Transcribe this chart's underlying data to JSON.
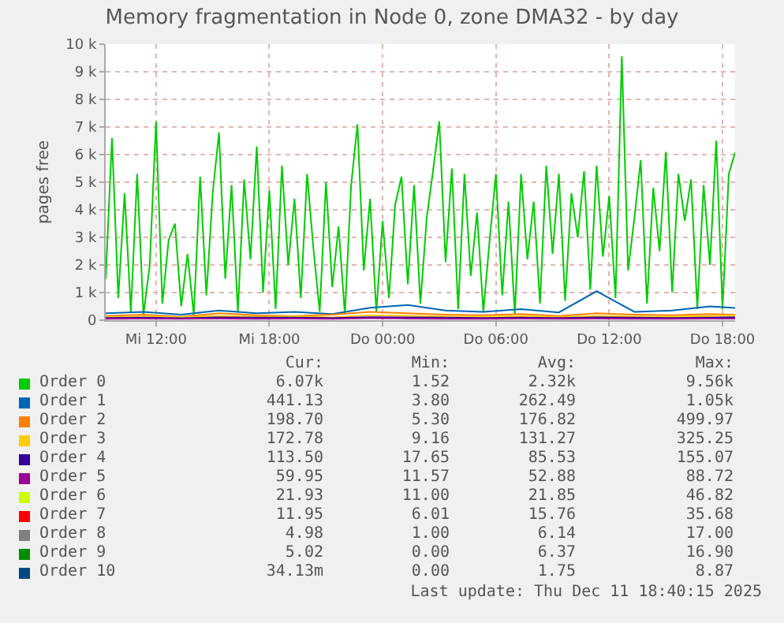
{
  "chart_data": {
    "type": "line",
    "title": "Memory fragmentation in Node 0, zone DMA32 - by day",
    "ylabel": "pages free",
    "x": [
      "2025-12-10T09:20",
      "2025-12-10T09:40",
      "2025-12-10T10:00",
      "2025-12-10T10:20",
      "2025-12-10T10:40",
      "2025-12-10T11:00",
      "2025-12-10T11:20",
      "2025-12-10T11:40",
      "2025-12-10T12:00",
      "2025-12-10T12:20",
      "2025-12-10T12:40",
      "2025-12-10T13:00",
      "2025-12-10T13:20",
      "2025-12-10T13:40",
      "2025-12-10T14:00",
      "2025-12-10T14:20",
      "2025-12-10T14:40",
      "2025-12-10T15:00",
      "2025-12-10T15:20",
      "2025-12-10T15:40",
      "2025-12-10T16:00",
      "2025-12-10T16:20",
      "2025-12-10T16:40",
      "2025-12-10T17:00",
      "2025-12-10T17:20",
      "2025-12-10T17:40",
      "2025-12-10T18:00",
      "2025-12-10T18:20",
      "2025-12-10T18:40",
      "2025-12-10T19:00",
      "2025-12-10T19:20",
      "2025-12-10T19:40",
      "2025-12-10T20:00",
      "2025-12-10T20:20",
      "2025-12-10T20:40",
      "2025-12-10T21:00",
      "2025-12-10T21:20",
      "2025-12-10T21:40",
      "2025-12-10T22:00",
      "2025-12-10T22:20",
      "2025-12-10T22:40",
      "2025-12-10T23:00",
      "2025-12-10T23:20",
      "2025-12-10T23:40",
      "2025-12-11T00:00",
      "2025-12-11T00:20",
      "2025-12-11T00:40",
      "2025-12-11T01:00",
      "2025-12-11T01:20",
      "2025-12-11T01:40",
      "2025-12-11T02:00",
      "2025-12-11T02:20",
      "2025-12-11T02:40",
      "2025-12-11T03:00",
      "2025-12-11T03:20",
      "2025-12-11T03:40",
      "2025-12-11T04:00",
      "2025-12-11T04:20",
      "2025-12-11T04:40",
      "2025-12-11T05:00",
      "2025-12-11T05:20",
      "2025-12-11T05:40",
      "2025-12-11T06:00",
      "2025-12-11T06:20",
      "2025-12-11T06:40",
      "2025-12-11T07:00",
      "2025-12-11T07:20",
      "2025-12-11T07:40",
      "2025-12-11T08:00",
      "2025-12-11T08:20",
      "2025-12-11T08:40",
      "2025-12-11T09:00",
      "2025-12-11T09:20",
      "2025-12-11T09:40",
      "2025-12-11T10:00",
      "2025-12-11T10:20",
      "2025-12-11T10:40",
      "2025-12-11T11:00",
      "2025-12-11T11:20",
      "2025-12-11T11:40",
      "2025-12-11T12:00",
      "2025-12-11T12:20",
      "2025-12-11T12:40",
      "2025-12-11T13:00",
      "2025-12-11T13:20",
      "2025-12-11T13:40",
      "2025-12-11T14:00",
      "2025-12-11T14:20",
      "2025-12-11T14:40",
      "2025-12-11T15:00",
      "2025-12-11T15:20",
      "2025-12-11T15:40",
      "2025-12-11T16:00",
      "2025-12-11T16:20",
      "2025-12-11T16:40",
      "2025-12-11T17:00",
      "2025-12-11T17:20",
      "2025-12-11T17:40",
      "2025-12-11T18:00",
      "2025-12-11T18:20",
      "2025-12-11T18:40"
    ],
    "series": [
      {
        "name": "Order 0",
        "color": "#00cc00",
        "values": [
          1500,
          6600,
          800,
          4600,
          300,
          5300,
          200,
          2000,
          7200,
          600,
          2900,
          3500,
          500,
          2400,
          200,
          5200,
          900,
          4600,
          6800,
          1500,
          4900,
          300,
          5100,
          2200,
          6300,
          1000,
          4700,
          400,
          5600,
          2000,
          4400,
          800,
          5300,
          2600,
          300,
          5000,
          1200,
          3400,
          200,
          4900,
          7100,
          1800,
          4400,
          300,
          3600,
          800,
          4200,
          5200,
          1300,
          4900,
          600,
          3700,
          5400,
          7200,
          2100,
          5500,
          400,
          5300,
          1600,
          3900,
          300,
          2900,
          5300,
          900,
          4300,
          200,
          5300,
          2200,
          4300,
          600,
          5600,
          2400,
          5300,
          700,
          4600,
          3000,
          5400,
          1100,
          5600,
          2300,
          4500,
          800,
          9560,
          1800,
          3700,
          5800,
          600,
          4800,
          2500,
          6100,
          1000,
          5300,
          3600,
          5100,
          400,
          4900,
          2000,
          6500,
          400,
          5300,
          6070
        ]
      },
      {
        "name": "Order 1",
        "color": "#0066b3",
        "x": [
          "2025-12-10T09:20",
          "2025-12-10T11:20",
          "2025-12-10T13:20",
          "2025-12-10T15:20",
          "2025-12-10T17:20",
          "2025-12-10T19:20",
          "2025-12-10T21:20",
          "2025-12-10T23:20",
          "2025-12-11T01:20",
          "2025-12-11T03:20",
          "2025-12-11T05:20",
          "2025-12-11T07:20",
          "2025-12-11T09:20",
          "2025-12-11T11:20",
          "2025-12-11T13:20",
          "2025-12-11T15:20",
          "2025-12-11T17:20",
          "2025-12-11T18:40"
        ],
        "values": [
          250,
          300,
          200,
          350,
          250,
          300,
          220,
          450,
          550,
          350,
          300,
          400,
          280,
          1050,
          300,
          350,
          500,
          440
        ]
      },
      {
        "name": "Order 2",
        "color": "#ff8000",
        "x": [
          "2025-12-10T09:20",
          "2025-12-10T11:20",
          "2025-12-10T13:20",
          "2025-12-10T15:20",
          "2025-12-10T17:20",
          "2025-12-10T19:20",
          "2025-12-10T21:20",
          "2025-12-10T23:20",
          "2025-12-11T01:20",
          "2025-12-11T03:20",
          "2025-12-11T05:20",
          "2025-12-11T07:20",
          "2025-12-11T09:20",
          "2025-12-11T11:20",
          "2025-12-11T13:20",
          "2025-12-11T15:20",
          "2025-12-11T17:20",
          "2025-12-11T18:40"
        ],
        "values": [
          150,
          200,
          120,
          250,
          180,
          150,
          200,
          300,
          250,
          200,
          180,
          220,
          150,
          250,
          200,
          180,
          220,
          200
        ]
      },
      {
        "name": "Order 3",
        "color": "#ffcc00",
        "x": [
          "2025-12-10T09:20",
          "2025-12-10T11:20",
          "2025-12-10T13:20",
          "2025-12-10T15:20",
          "2025-12-10T17:20",
          "2025-12-10T19:20",
          "2025-12-10T21:20",
          "2025-12-10T23:20",
          "2025-12-11T01:20",
          "2025-12-11T03:20",
          "2025-12-11T05:20",
          "2025-12-11T07:20",
          "2025-12-11T09:20",
          "2025-12-11T11:20",
          "2025-12-11T13:20",
          "2025-12-11T15:20",
          "2025-12-11T17:20",
          "2025-12-11T18:40"
        ],
        "values": [
          100,
          130,
          110,
          150,
          120,
          140,
          100,
          180,
          160,
          130,
          120,
          140,
          110,
          150,
          130,
          120,
          150,
          170
        ]
      },
      {
        "name": "Order 4",
        "color": "#330099",
        "x": [
          "2025-12-10T09:20",
          "2025-12-10T11:20",
          "2025-12-10T13:20",
          "2025-12-10T15:20",
          "2025-12-10T17:20",
          "2025-12-10T19:20",
          "2025-12-10T21:20",
          "2025-12-10T23:20",
          "2025-12-11T01:20",
          "2025-12-11T03:20",
          "2025-12-11T05:20",
          "2025-12-11T07:20",
          "2025-12-11T09:20",
          "2025-12-11T11:20",
          "2025-12-11T13:20",
          "2025-12-11T15:20",
          "2025-12-11T17:20",
          "2025-12-11T18:40"
        ],
        "values": [
          80,
          90,
          70,
          100,
          90,
          90,
          80,
          110,
          100,
          90,
          80,
          90,
          80,
          100,
          90,
          80,
          90,
          110
        ]
      },
      {
        "name": "Order 5",
        "color": "#990099",
        "x": [
          "2025-12-10T09:20",
          "2025-12-10T11:20",
          "2025-12-10T13:20",
          "2025-12-10T15:20",
          "2025-12-10T17:20",
          "2025-12-10T19:20",
          "2025-12-10T21:20",
          "2025-12-10T23:20",
          "2025-12-11T01:20",
          "2025-12-11T03:20",
          "2025-12-11T05:20",
          "2025-12-11T07:20",
          "2025-12-11T09:20",
          "2025-12-11T11:20",
          "2025-12-11T13:20",
          "2025-12-11T15:20",
          "2025-12-11T17:20",
          "2025-12-11T18:40"
        ],
        "values": [
          50,
          60,
          50,
          60,
          50,
          60,
          50,
          70,
          60,
          50,
          50,
          60,
          50,
          60,
          50,
          50,
          60,
          60
        ]
      },
      {
        "name": "Order 6",
        "color": "#ccff00",
        "values": [
          null,
          null,
          null,
          null,
          null,
          null,
          null,
          null,
          null,
          null,
          null,
          null,
          null,
          null,
          null,
          null,
          null,
          null,
          null,
          null,
          null,
          null,
          null,
          null,
          null,
          null,
          null,
          null,
          null,
          null,
          null,
          null,
          null,
          null,
          null,
          null,
          null,
          null,
          null,
          null,
          null,
          null,
          null,
          null,
          null,
          null,
          null,
          null,
          null,
          null,
          null,
          null,
          null,
          null,
          null,
          null,
          null,
          null,
          null,
          null,
          null,
          null,
          null,
          null,
          null,
          null,
          null,
          null,
          null,
          null,
          null,
          null,
          null,
          null,
          null,
          null,
          null,
          null,
          null,
          null,
          null,
          null,
          null,
          null,
          null,
          null,
          null,
          null,
          null,
          null,
          null,
          null,
          null,
          null,
          null,
          null,
          null,
          null,
          null,
          null,
          null
        ]
      },
      {
        "name": "Order 7",
        "color": "#ff0000",
        "values": [
          null,
          null,
          null,
          null,
          null,
          null,
          null,
          null,
          null,
          null,
          null,
          null,
          null,
          null,
          null,
          null,
          null,
          null,
          null,
          null,
          null,
          null,
          null,
          null,
          null,
          null,
          null,
          null,
          null,
          null,
          null,
          null,
          null,
          null,
          null,
          null,
          null,
          null,
          null,
          null,
          null,
          null,
          null,
          null,
          null,
          null,
          null,
          null,
          null,
          null,
          null,
          null,
          null,
          null,
          null,
          null,
          null,
          null,
          null,
          null,
          null,
          null,
          null,
          null,
          null,
          null,
          null,
          null,
          null,
          null,
          null,
          null,
          null,
          null,
          null,
          null,
          null,
          null,
          null,
          null,
          null,
          null,
          null,
          null,
          null,
          null,
          null,
          null,
          null,
          null,
          null,
          null,
          null,
          null,
          null,
          null,
          null,
          null,
          null,
          null,
          null
        ]
      },
      {
        "name": "Order 8",
        "color": "#808080",
        "values": [
          null,
          null,
          null,
          null,
          null,
          null,
          null,
          null,
          null,
          null,
          null,
          null,
          null,
          null,
          null,
          null,
          null,
          null,
          null,
          null,
          null,
          null,
          null,
          null,
          null,
          null,
          null,
          null,
          null,
          null,
          null,
          null,
          null,
          null,
          null,
          null,
          null,
          null,
          null,
          null,
          null,
          null,
          null,
          null,
          null,
          null,
          null,
          null,
          null,
          null,
          null,
          null,
          null,
          null,
          null,
          null,
          null,
          null,
          null,
          null,
          null,
          null,
          null,
          null,
          null,
          null,
          null,
          null,
          null,
          null,
          null,
          null,
          null,
          null,
          null,
          null,
          null,
          null,
          null,
          null,
          null,
          null,
          null,
          null,
          null,
          null,
          null,
          null,
          null,
          null,
          null,
          null,
          null,
          null,
          null,
          null,
          null,
          null,
          null,
          null,
          null
        ]
      },
      {
        "name": "Order 9",
        "color": "#008f00",
        "values": [
          null,
          null,
          null,
          null,
          null,
          null,
          null,
          null,
          null,
          null,
          null,
          null,
          null,
          null,
          null,
          null,
          null,
          null,
          null,
          null,
          null,
          null,
          null,
          null,
          null,
          null,
          null,
          null,
          null,
          null,
          null,
          null,
          null,
          null,
          null,
          null,
          null,
          null,
          null,
          null,
          null,
          null,
          null,
          null,
          null,
          null,
          null,
          null,
          null,
          null,
          null,
          null,
          null,
          null,
          null,
          null,
          null,
          null,
          null,
          null,
          null,
          null,
          null,
          null,
          null,
          null,
          null,
          null,
          null,
          null,
          null,
          null,
          null,
          null,
          null,
          null,
          null,
          null,
          null,
          null,
          null,
          null,
          null,
          null,
          null,
          null,
          null,
          null,
          null,
          null,
          null,
          null,
          null,
          null,
          null,
          null,
          null,
          null,
          null,
          null,
          null
        ]
      },
      {
        "name": "Order 10",
        "color": "#00487d",
        "values": [
          null,
          null,
          null,
          null,
          null,
          null,
          null,
          null,
          null,
          null,
          null,
          null,
          null,
          null,
          null,
          null,
          null,
          null,
          null,
          null,
          null,
          null,
          null,
          null,
          null,
          null,
          null,
          null,
          null,
          null,
          null,
          null,
          null,
          null,
          null,
          null,
          null,
          null,
          null,
          null,
          null,
          null,
          null,
          null,
          null,
          null,
          null,
          null,
          null,
          null,
          null,
          null,
          null,
          null,
          null,
          null,
          null,
          null,
          null,
          null,
          null,
          null,
          null,
          null,
          null,
          null,
          null,
          null,
          null,
          null,
          null,
          null,
          null,
          null,
          null,
          null,
          null,
          null,
          null,
          null,
          null,
          null,
          null,
          null,
          null,
          null,
          null,
          null,
          null,
          null,
          null,
          null,
          null,
          null,
          null,
          null,
          null,
          null,
          null,
          null,
          null
        ]
      }
    ],
    "xlim": [
      "2025-12-10T09:20",
      "2025-12-11T18:40"
    ],
    "xticks": [
      {
        "value": "2025-12-10T12:00",
        "label": "Mi 12:00"
      },
      {
        "value": "2025-12-10T18:00",
        "label": "Mi 18:00"
      },
      {
        "value": "2025-12-11T00:00",
        "label": "Do 00:00"
      },
      {
        "value": "2025-12-11T06:00",
        "label": "Do 06:00"
      },
      {
        "value": "2025-12-11T12:00",
        "label": "Do 12:00"
      },
      {
        "value": "2025-12-11T18:00",
        "label": "Do 18:00"
      }
    ],
    "ylim": [
      0,
      10000
    ],
    "yticks": [
      0,
      {
        "value": 1000,
        "label": "1 k"
      },
      {
        "value": 2000,
        "label": "2 k"
      },
      {
        "value": 3000,
        "label": "3 k"
      },
      {
        "value": 4000,
        "label": "4 k"
      },
      {
        "value": 5000,
        "label": "5 k"
      },
      {
        "value": 6000,
        "label": "6 k"
      },
      {
        "value": 7000,
        "label": "7 k"
      },
      {
        "value": 8000,
        "label": "8 k"
      },
      {
        "value": 9000,
        "label": "9 k"
      },
      {
        "value": 10000,
        "label": "10 k"
      }
    ],
    "grid": true,
    "legend": "bottom",
    "marker": "none",
    "line_style": "solid",
    "annotations": [
      "Cur:",
      "Min:",
      "Avg:",
      "Max:",
      "6.07k",
      "1.52",
      "2.32k",
      "9.56k",
      "441.13",
      "3.80",
      "262.49",
      "1.05k",
      "198.70",
      "5.30",
      "176.82",
      "499.97",
      "172.78",
      "9.16",
      "131.27",
      "325.25",
      "113.50",
      "17.65",
      "85.53",
      "155.07",
      "59.95",
      "11.57",
      "52.88",
      "88.72",
      "21.93",
      "11.00",
      "21.85",
      "46.82",
      "11.95",
      "6.01",
      "15.76",
      "35.68",
      "4.98",
      "1.00",
      "6.14",
      "17.00",
      "5.02",
      "0.00",
      "6.37",
      "16.90",
      "34.13m",
      "0.00",
      "1.75",
      "8.87",
      "Last update: Thu Dec 11 18:40:15 2025"
    ]
  }
}
